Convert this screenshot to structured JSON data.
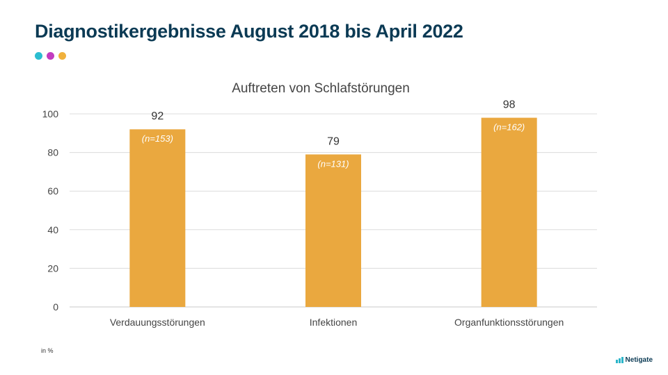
{
  "slide": {
    "title": "Diagnostikergebnisse August 2018 bis April 2022",
    "unit_note": "in %",
    "logo_text": "Netigate",
    "dot_colors": [
      "#2bbdd0",
      "#c23cc0",
      "#f0b13c"
    ]
  },
  "chart_data": {
    "type": "bar",
    "title": "Auftreten von Schlafstörungen",
    "categories": [
      "Verdauungsstörungen",
      "Infektionen",
      "Organfunktionsstörungen"
    ],
    "values": [
      92,
      79,
      98
    ],
    "annotations": [
      "(n=153)",
      "(n=131)",
      "(n=162)"
    ],
    "ylim": [
      0,
      100
    ],
    "yticks": [
      0,
      20,
      40,
      60,
      80,
      100
    ],
    "grid": true,
    "bar_color": "#eaa83f",
    "xlabel": "",
    "ylabel": ""
  }
}
